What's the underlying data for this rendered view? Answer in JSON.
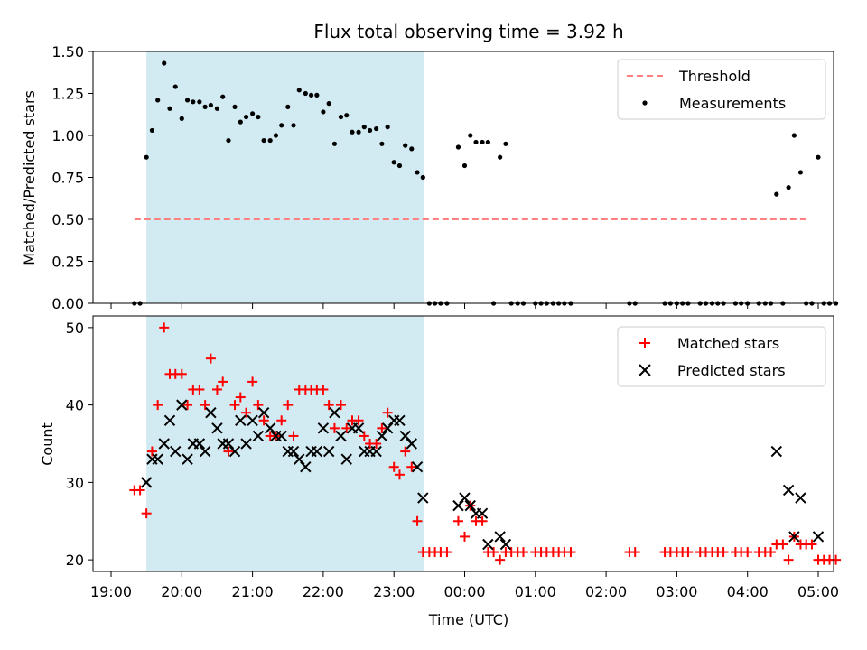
{
  "figure": {
    "title": "Flux total observing time = 3.92 h",
    "xlabel": "Time (UTC)",
    "xticks": [
      "19:00",
      "20:00",
      "21:00",
      "22:00",
      "23:00",
      "00:00",
      "01:00",
      "02:00",
      "03:00",
      "04:00",
      "05:00"
    ]
  },
  "chart_data": [
    {
      "type": "scatter",
      "x_unit": "hours since 19:00 UTC",
      "ylabel": "Matched/Predicted stars",
      "ylim": [
        0,
        1.5
      ],
      "yticks": [
        "0.00",
        "0.25",
        "0.50",
        "0.75",
        "1.00",
        "1.25",
        "1.50"
      ],
      "xlim": [
        -0.1,
        10.2
      ],
      "grid": false,
      "legend_position": "top-right",
      "shaded_span": [
        0.5,
        4.42
      ],
      "threshold": {
        "name": "Threshold",
        "y": 0.5,
        "x_range": [
          0.33,
          9.83
        ],
        "color": "#ff8080",
        "style": "dashed"
      },
      "series": [
        {
          "name": "Measurements",
          "color": "#000000",
          "points": [
            [
              0.33,
              0
            ],
            [
              0.41,
              0
            ],
            [
              0.5,
              0.87
            ],
            [
              0.58,
              1.03
            ],
            [
              0.66,
              1.21
            ],
            [
              0.75,
              1.43
            ],
            [
              0.83,
              1.16
            ],
            [
              0.91,
              1.29
            ],
            [
              1.0,
              1.1
            ],
            [
              1.08,
              1.21
            ],
            [
              1.16,
              1.2
            ],
            [
              1.25,
              1.2
            ],
            [
              1.33,
              1.17
            ],
            [
              1.41,
              1.18
            ],
            [
              1.5,
              1.16
            ],
            [
              1.58,
              1.23
            ],
            [
              1.66,
              0.97
            ],
            [
              1.75,
              1.17
            ],
            [
              1.83,
              1.08
            ],
            [
              1.91,
              1.11
            ],
            [
              2.0,
              1.13
            ],
            [
              2.08,
              1.11
            ],
            [
              2.16,
              0.97
            ],
            [
              2.25,
              0.97
            ],
            [
              2.33,
              1.0
            ],
            [
              2.41,
              1.06
            ],
            [
              2.5,
              1.17
            ],
            [
              2.58,
              1.06
            ],
            [
              2.66,
              1.27
            ],
            [
              2.75,
              1.25
            ],
            [
              2.83,
              1.24
            ],
            [
              2.91,
              1.24
            ],
            [
              3.0,
              1.14
            ],
            [
              3.08,
              1.19
            ],
            [
              3.16,
              0.95
            ],
            [
              3.25,
              1.11
            ],
            [
              3.33,
              1.12
            ],
            [
              3.41,
              1.02
            ],
            [
              3.5,
              1.02
            ],
            [
              3.58,
              1.05
            ],
            [
              3.66,
              1.03
            ],
            [
              3.75,
              1.04
            ],
            [
              3.83,
              0.95
            ],
            [
              3.91,
              1.05
            ],
            [
              4.0,
              0.84
            ],
            [
              4.08,
              0.82
            ],
            [
              4.16,
              0.94
            ],
            [
              4.25,
              0.92
            ],
            [
              4.33,
              0.78
            ],
            [
              4.41,
              0.75
            ],
            [
              4.5,
              0
            ],
            [
              4.58,
              0
            ],
            [
              4.66,
              0
            ],
            [
              4.75,
              0
            ],
            [
              4.91,
              0.93
            ],
            [
              5.0,
              0.82
            ],
            [
              5.08,
              1.0
            ],
            [
              5.16,
              0.96
            ],
            [
              5.25,
              0.96
            ],
            [
              5.33,
              0.96
            ],
            [
              5.41,
              0
            ],
            [
              5.5,
              0.87
            ],
            [
              5.58,
              0.95
            ],
            [
              5.66,
              0
            ],
            [
              5.75,
              0
            ],
            [
              5.83,
              0
            ],
            [
              6.0,
              0
            ],
            [
              6.08,
              0
            ],
            [
              6.16,
              0
            ],
            [
              6.25,
              0
            ],
            [
              6.33,
              0
            ],
            [
              6.41,
              0
            ],
            [
              6.5,
              0
            ],
            [
              7.33,
              0
            ],
            [
              7.41,
              0
            ],
            [
              7.83,
              0
            ],
            [
              7.91,
              0
            ],
            [
              8.0,
              0
            ],
            [
              8.08,
              0
            ],
            [
              8.16,
              0
            ],
            [
              8.33,
              0
            ],
            [
              8.41,
              0
            ],
            [
              8.5,
              0
            ],
            [
              8.58,
              0
            ],
            [
              8.66,
              0
            ],
            [
              8.83,
              0
            ],
            [
              8.91,
              0
            ],
            [
              9.0,
              0
            ],
            [
              9.16,
              0
            ],
            [
              9.25,
              0
            ],
            [
              9.33,
              0
            ],
            [
              9.41,
              0.65
            ],
            [
              9.5,
              0
            ],
            [
              9.58,
              0.69
            ],
            [
              9.66,
              1.0
            ],
            [
              9.75,
              0.78
            ],
            [
              9.83,
              0
            ],
            [
              9.91,
              0
            ],
            [
              10.0,
              0.87
            ],
            [
              10.08,
              0
            ],
            [
              10.16,
              0
            ],
            [
              10.25,
              0
            ]
          ]
        }
      ]
    },
    {
      "type": "scatter",
      "x_unit": "hours since 19:00 UTC",
      "ylabel": "Count",
      "ylim": [
        18.5,
        51.5
      ],
      "yticks": [
        "20",
        "30",
        "40",
        "50"
      ],
      "xlim": [
        -0.1,
        10.2
      ],
      "grid": false,
      "legend_position": "top-right",
      "shaded_span": [
        0.5,
        4.42
      ],
      "series": [
        {
          "name": "Matched stars",
          "marker": "plus",
          "color": "#ff0000",
          "points": [
            [
              0.33,
              29
            ],
            [
              0.41,
              29
            ],
            [
              0.5,
              26
            ],
            [
              0.58,
              34
            ],
            [
              0.66,
              40
            ],
            [
              0.75,
              50
            ],
            [
              0.83,
              44
            ],
            [
              0.91,
              44
            ],
            [
              1.0,
              44
            ],
            [
              1.08,
              40
            ],
            [
              1.16,
              42
            ],
            [
              1.25,
              42
            ],
            [
              1.33,
              40
            ],
            [
              1.41,
              46
            ],
            [
              1.5,
              42
            ],
            [
              1.58,
              43
            ],
            [
              1.66,
              34
            ],
            [
              1.75,
              40
            ],
            [
              1.83,
              41
            ],
            [
              1.91,
              39
            ],
            [
              2.0,
              43
            ],
            [
              2.08,
              40
            ],
            [
              2.16,
              38
            ],
            [
              2.25,
              36
            ],
            [
              2.33,
              36
            ],
            [
              2.41,
              38
            ],
            [
              2.5,
              40
            ],
            [
              2.58,
              36
            ],
            [
              2.66,
              42
            ],
            [
              2.75,
              42
            ],
            [
              2.83,
              42
            ],
            [
              2.91,
              42
            ],
            [
              3.0,
              42
            ],
            [
              3.08,
              40
            ],
            [
              3.16,
              37
            ],
            [
              3.25,
              40
            ],
            [
              3.33,
              37
            ],
            [
              3.41,
              38
            ],
            [
              3.5,
              38
            ],
            [
              3.58,
              36
            ],
            [
              3.66,
              35
            ],
            [
              3.75,
              35
            ],
            [
              3.83,
              37
            ],
            [
              3.91,
              39
            ],
            [
              4.0,
              32
            ],
            [
              4.08,
              31
            ],
            [
              4.16,
              34
            ],
            [
              4.25,
              32
            ],
            [
              4.33,
              25
            ],
            [
              4.41,
              21
            ],
            [
              4.5,
              21
            ],
            [
              4.58,
              21
            ],
            [
              4.66,
              21
            ],
            [
              4.75,
              21
            ],
            [
              4.91,
              25
            ],
            [
              5.0,
              23
            ],
            [
              5.08,
              27
            ],
            [
              5.16,
              25
            ],
            [
              5.25,
              25
            ],
            [
              5.33,
              21
            ],
            [
              5.41,
              21
            ],
            [
              5.5,
              20
            ],
            [
              5.58,
              21
            ],
            [
              5.66,
              21
            ],
            [
              5.75,
              21
            ],
            [
              5.83,
              21
            ],
            [
              6.0,
              21
            ],
            [
              6.08,
              21
            ],
            [
              6.16,
              21
            ],
            [
              6.25,
              21
            ],
            [
              6.33,
              21
            ],
            [
              6.41,
              21
            ],
            [
              6.5,
              21
            ],
            [
              7.33,
              21
            ],
            [
              7.41,
              21
            ],
            [
              7.83,
              21
            ],
            [
              7.91,
              21
            ],
            [
              8.0,
              21
            ],
            [
              8.08,
              21
            ],
            [
              8.16,
              21
            ],
            [
              8.33,
              21
            ],
            [
              8.41,
              21
            ],
            [
              8.5,
              21
            ],
            [
              8.58,
              21
            ],
            [
              8.66,
              21
            ],
            [
              8.83,
              21
            ],
            [
              8.91,
              21
            ],
            [
              9.0,
              21
            ],
            [
              9.16,
              21
            ],
            [
              9.25,
              21
            ],
            [
              9.33,
              21
            ],
            [
              9.41,
              22
            ],
            [
              9.5,
              22
            ],
            [
              9.58,
              20
            ],
            [
              9.66,
              23
            ],
            [
              9.75,
              22
            ],
            [
              9.83,
              22
            ],
            [
              9.91,
              22
            ],
            [
              10.0,
              20
            ],
            [
              10.08,
              20
            ],
            [
              10.16,
              20
            ],
            [
              10.25,
              20
            ]
          ]
        },
        {
          "name": "Predicted stars",
          "marker": "x",
          "color": "#000000",
          "points": [
            [
              0.5,
              30
            ],
            [
              0.58,
              33
            ],
            [
              0.66,
              33
            ],
            [
              0.75,
              35
            ],
            [
              0.83,
              38
            ],
            [
              0.91,
              34
            ],
            [
              1.0,
              40
            ],
            [
              1.08,
              33
            ],
            [
              1.16,
              35
            ],
            [
              1.25,
              35
            ],
            [
              1.33,
              34
            ],
            [
              1.41,
              39
            ],
            [
              1.5,
              37
            ],
            [
              1.58,
              35
            ],
            [
              1.66,
              35
            ],
            [
              1.75,
              34
            ],
            [
              1.83,
              38
            ],
            [
              1.91,
              35
            ],
            [
              2.0,
              38
            ],
            [
              2.08,
              36
            ],
            [
              2.16,
              39
            ],
            [
              2.25,
              37
            ],
            [
              2.33,
              36
            ],
            [
              2.41,
              36
            ],
            [
              2.5,
              34
            ],
            [
              2.58,
              34
            ],
            [
              2.66,
              33
            ],
            [
              2.75,
              32
            ],
            [
              2.83,
              34
            ],
            [
              2.91,
              34
            ],
            [
              3.0,
              37
            ],
            [
              3.08,
              34
            ],
            [
              3.16,
              39
            ],
            [
              3.25,
              36
            ],
            [
              3.33,
              33
            ],
            [
              3.41,
              37
            ],
            [
              3.5,
              37
            ],
            [
              3.58,
              34
            ],
            [
              3.66,
              34
            ],
            [
              3.75,
              34
            ],
            [
              3.83,
              36
            ],
            [
              3.91,
              37
            ],
            [
              4.0,
              38
            ],
            [
              4.08,
              38
            ],
            [
              4.16,
              36
            ],
            [
              4.25,
              35
            ],
            [
              4.33,
              32
            ],
            [
              4.41,
              28
            ],
            [
              4.91,
              27
            ],
            [
              5.0,
              28
            ],
            [
              5.08,
              27
            ],
            [
              5.16,
              26
            ],
            [
              5.25,
              26
            ],
            [
              5.33,
              22
            ],
            [
              5.5,
              23
            ],
            [
              5.58,
              22
            ],
            [
              9.41,
              34
            ],
            [
              9.58,
              29
            ],
            [
              9.66,
              23
            ],
            [
              9.75,
              28
            ],
            [
              10.0,
              23
            ]
          ]
        }
      ]
    }
  ]
}
